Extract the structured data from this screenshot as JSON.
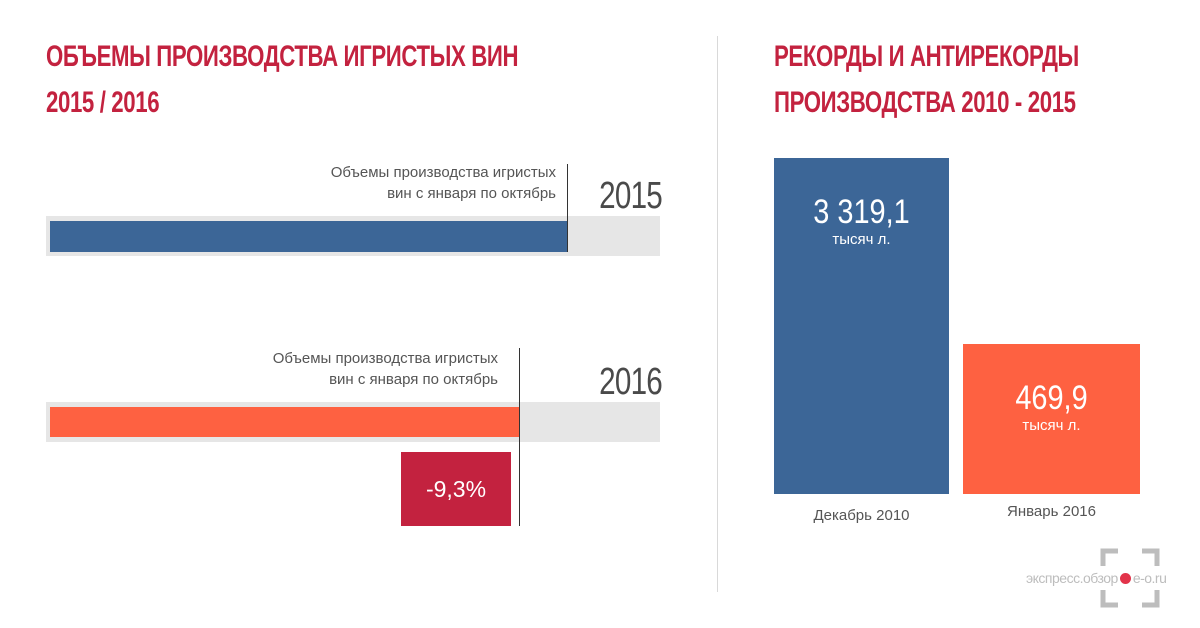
{
  "left_panel": {
    "title_line1": "Объемы производства игристых вин",
    "title_line2": "2015 / 2016"
  },
  "right_panel": {
    "title_line1": "Рекорды и антирекорды",
    "title_line2": "производства 2010 - 2015"
  },
  "colors": {
    "title": "#c3223f",
    "blue": "#3c6697",
    "orange": "#fe6141",
    "badge": "#c3223f",
    "track": "#e6e6e6"
  },
  "chart_data": [
    {
      "type": "bar",
      "orientation": "horizontal",
      "categories": [
        "2015",
        "2016"
      ],
      "series": [
        {
          "values": [
            100,
            90.7
          ]
        }
      ],
      "bar_labels": [
        {
          "line1": "Объемы производства игристых",
          "line2": "вин с января по октябрь"
        },
        {
          "line1": "Объемы производства игристых",
          "line2": "вин с января по октябрь"
        }
      ],
      "change_label": "-9,3%",
      "change_value": -9.3
    },
    {
      "type": "bar",
      "categories": [
        "Декабрь 2010",
        "Январь 2016"
      ],
      "values": [
        3319.1,
        469.9
      ],
      "value_labels": [
        "3 319,1",
        "469,9"
      ],
      "unit_label": "тысяч л."
    }
  ],
  "logo": {
    "text_before": "экспресс.обзор",
    "text_after": "e-o.ru"
  }
}
